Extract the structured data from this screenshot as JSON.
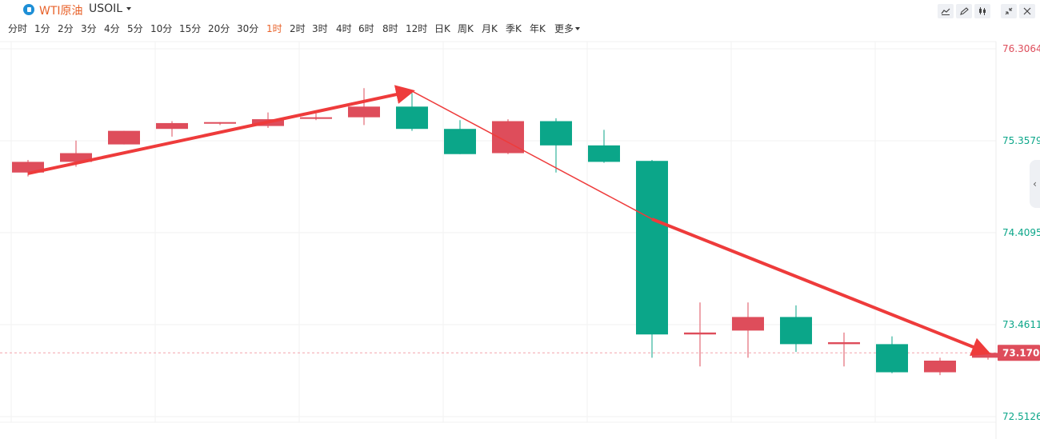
{
  "header": {
    "title": "WTI原油",
    "symbol": "USOIL",
    "tools": [
      "line-tool-icon",
      "pen-tool-icon",
      "candle-type-icon",
      "shrink-icon",
      "close-icon"
    ]
  },
  "periods": [
    {
      "label": "分时"
    },
    {
      "label": "1分"
    },
    {
      "label": "2分"
    },
    {
      "label": "3分"
    },
    {
      "label": "4分"
    },
    {
      "label": "5分"
    },
    {
      "label": "10分"
    },
    {
      "label": "15分"
    },
    {
      "label": "20分"
    },
    {
      "label": "30分"
    },
    {
      "label": "1时",
      "active": true
    },
    {
      "label": "2时"
    },
    {
      "label": "3时"
    },
    {
      "label": "4时"
    },
    {
      "label": "6时"
    },
    {
      "label": "8时"
    },
    {
      "label": "12时"
    },
    {
      "label": "日K"
    },
    {
      "label": "周K"
    },
    {
      "label": "月K"
    },
    {
      "label": "季K"
    },
    {
      "label": "年K"
    },
    {
      "label": "更多"
    }
  ],
  "colors": {
    "up": "#de4d5b",
    "down": "#0ba689",
    "arrow": "#ee3b3b",
    "accent": "#e8622a"
  },
  "chart_data": {
    "type": "candlestick",
    "ylim": [
      72.5126,
      76.3064
    ],
    "y_ticks": [
      {
        "value": 76.3064,
        "label": "76.3064",
        "color": "#de4d5b"
      },
      {
        "value": 75.3579,
        "label": "75.3579",
        "color": "#0ba689"
      },
      {
        "value": 74.4095,
        "label": "74.4095",
        "color": "#0ba689"
      },
      {
        "value": 73.4611,
        "label": "73.4611",
        "color": "#0ba689"
      },
      {
        "value": 72.5126,
        "label": "72.5126",
        "color": "#0ba689"
      }
    ],
    "current_price": {
      "value": 73.17,
      "label": "73.1700"
    },
    "candles": [
      {
        "open": 75.03,
        "close": 75.14,
        "high": 75.16,
        "low": 74.99
      },
      {
        "open": 75.14,
        "close": 75.23,
        "high": 75.36,
        "low": 75.09
      },
      {
        "open": 75.32,
        "close": 75.46,
        "high": 75.46,
        "low": 75.32
      },
      {
        "open": 75.48,
        "close": 75.54,
        "high": 75.56,
        "low": 75.4
      },
      {
        "open": 75.54,
        "close": 75.55,
        "high": 75.55,
        "low": 75.52
      },
      {
        "open": 75.51,
        "close": 75.58,
        "high": 75.65,
        "low": 75.49
      },
      {
        "open": 75.6,
        "close": 75.6,
        "high": 75.64,
        "low": 75.57
      },
      {
        "open": 75.6,
        "close": 75.71,
        "high": 75.9,
        "low": 75.52
      },
      {
        "open": 75.71,
        "close": 75.48,
        "high": 75.85,
        "low": 75.46
      },
      {
        "open": 75.48,
        "close": 75.22,
        "high": 75.57,
        "low": 75.22
      },
      {
        "open": 75.23,
        "close": 75.56,
        "high": 75.58,
        "low": 75.22
      },
      {
        "open": 75.56,
        "close": 75.31,
        "high": 75.59,
        "low": 75.03
      },
      {
        "open": 75.31,
        "close": 75.14,
        "high": 75.47,
        "low": 75.13
      },
      {
        "open": 75.15,
        "close": 73.36,
        "high": 75.16,
        "low": 73.12
      },
      {
        "open": 73.36,
        "close": 73.38,
        "high": 73.69,
        "low": 73.03
      },
      {
        "open": 73.4,
        "close": 73.54,
        "high": 73.69,
        "low": 73.12
      },
      {
        "open": 73.54,
        "close": 73.26,
        "high": 73.66,
        "low": 73.18
      },
      {
        "open": 73.26,
        "close": 73.28,
        "high": 73.38,
        "low": 73.03
      },
      {
        "open": 73.26,
        "close": 72.97,
        "high": 73.34,
        "low": 72.96
      },
      {
        "open": 72.97,
        "close": 73.09,
        "high": 73.12,
        "low": 72.94
      },
      {
        "open": 73.12,
        "close": 73.17,
        "high": 73.19,
        "low": 73.1
      }
    ],
    "arrows": [
      {
        "from": {
          "index": 0,
          "price": 75.02
        },
        "to": {
          "index": 8,
          "price": 75.87
        },
        "width": 4
      },
      {
        "from": {
          "index": 8,
          "price": 75.87
        },
        "to": {
          "index": 20,
          "price": 73.17
        },
        "width": 1.5,
        "thick_from": {
          "index": 13,
          "price": 74.55
        },
        "thick_width": 4
      }
    ]
  }
}
